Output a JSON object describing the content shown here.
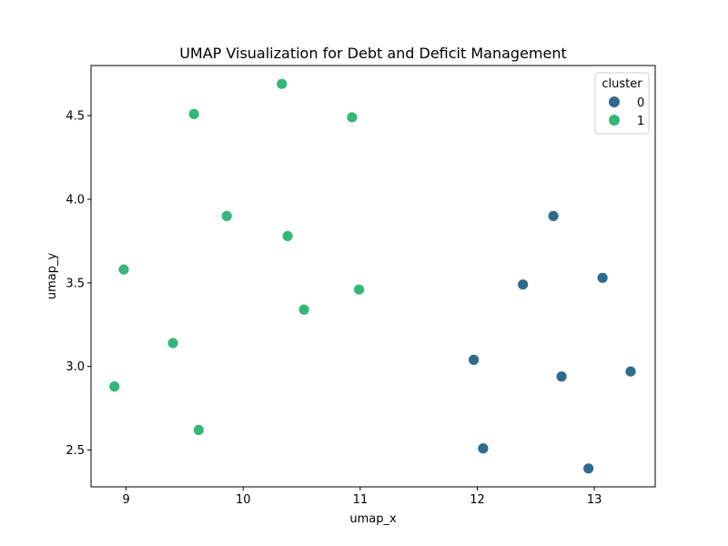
{
  "chart_data": {
    "type": "scatter",
    "title": "UMAP Visualization for Debt and Deficit Management",
    "xlabel": "umap_x",
    "ylabel": "umap_y",
    "xlim": [
      8.7,
      13.52
    ],
    "ylim": [
      2.28,
      4.8
    ],
    "xticks": [
      9,
      10,
      11,
      12,
      13
    ],
    "yticks": [
      2.5,
      3.0,
      3.5,
      4.0,
      4.5
    ],
    "xtick_labels": [
      "9",
      "10",
      "11",
      "12",
      "13"
    ],
    "ytick_labels": [
      "2.5",
      "3.0",
      "3.5",
      "4.0",
      "4.5"
    ],
    "grid": false,
    "legend": {
      "title": "cluster",
      "position": "top-right",
      "entries": [
        "0",
        "1"
      ]
    },
    "series": [
      {
        "name": "0",
        "color": "#2e6b8e",
        "points": [
          {
            "x": 12.65,
            "y": 3.9
          },
          {
            "x": 12.39,
            "y": 3.49
          },
          {
            "x": 13.07,
            "y": 3.53
          },
          {
            "x": 11.97,
            "y": 3.04
          },
          {
            "x": 12.72,
            "y": 2.94
          },
          {
            "x": 13.31,
            "y": 2.97
          },
          {
            "x": 12.05,
            "y": 2.51
          },
          {
            "x": 12.95,
            "y": 2.39
          }
        ]
      },
      {
        "name": "1",
        "color": "#35b779",
        "points": [
          {
            "x": 10.33,
            "y": 4.69
          },
          {
            "x": 9.58,
            "y": 4.51
          },
          {
            "x": 10.93,
            "y": 4.49
          },
          {
            "x": 9.86,
            "y": 3.9
          },
          {
            "x": 10.38,
            "y": 3.78
          },
          {
            "x": 8.98,
            "y": 3.58
          },
          {
            "x": 10.99,
            "y": 3.46
          },
          {
            "x": 10.52,
            "y": 3.34
          },
          {
            "x": 9.4,
            "y": 3.14
          },
          {
            "x": 8.9,
            "y": 2.88
          },
          {
            "x": 9.62,
            "y": 2.62
          }
        ]
      }
    ]
  }
}
